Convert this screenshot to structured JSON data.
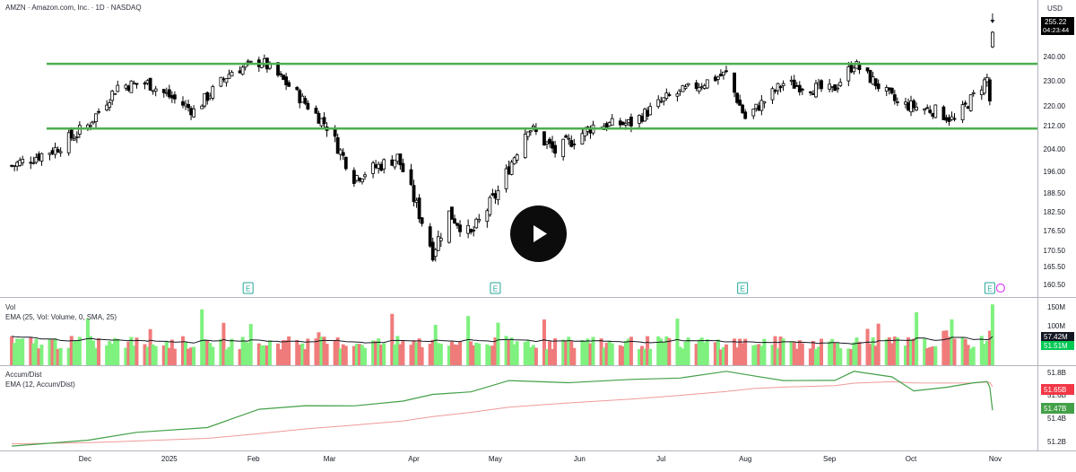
{
  "header": {
    "symbol_title": "AMZN · Amazon.com, Inc. · 1D · NASDAQ",
    "currency": "USD"
  },
  "price_panel": {
    "last_price": "255.22",
    "countdown": "04:23:44",
    "tick_labels": [
      "240.00",
      "230.00",
      "220.00",
      "212.00",
      "204.00",
      "196.00",
      "188.50",
      "182.50",
      "176.50",
      "170.50",
      "165.50",
      "160.50"
    ],
    "earnings_marker": "E"
  },
  "volume_panel": {
    "title": "Vol",
    "ema_label": "EMA (25, Vol: Volume, 0, SMA, 25)",
    "tick_labels": [
      "150M",
      "100M"
    ],
    "ema_value": "57.42M",
    "volume_value": "51.51M"
  },
  "ad_panel": {
    "title": "Accum/Dist",
    "ema_label": "EMA (12, Accum/Dist)",
    "tick_labels": [
      "51.8B",
      "51.6B",
      "51.4B",
      "51.2B"
    ],
    "ema_value": "51.65B",
    "ad_value": "51.47B"
  },
  "x_axis": {
    "labels": [
      "Dec",
      "2025",
      "Feb",
      "Mar",
      "Apr",
      "May",
      "Jun",
      "Jul",
      "Aug",
      "Sep",
      "Oct",
      "Nov"
    ]
  },
  "colors": {
    "up_volume": "#7ef17e",
    "down_volume": "#f07b7b",
    "level_line": "#4caf50",
    "ad_line": "#43a047",
    "ad_ema": "#ef9a9a",
    "vol_ema": "#131722",
    "candle": "#000000",
    "ema_tag": "#131722",
    "vol_tag": "#00c853",
    "ad_ema_tag": "#f23645",
    "ad_tag": "#43a047"
  },
  "chart_data": {
    "type": "candlestick",
    "symbol": "AMZN",
    "timeframe": "1D",
    "price_range": [
      158.5,
      258
    ],
    "horizontal_levels": [
      237,
      211
    ],
    "x_range": [
      "2024-11-01",
      "2025-11-03"
    ],
    "candles_monthly_path": [
      {
        "date": "2024-11-04",
        "close": 198
      },
      {
        "date": "2024-11-20",
        "close": 204
      },
      {
        "date": "2024-12-02",
        "close": 212
      },
      {
        "date": "2024-12-13",
        "close": 228
      },
      {
        "date": "2024-12-24",
        "close": 229
      },
      {
        "date": "2025-01-10",
        "close": 218
      },
      {
        "date": "2025-01-24",
        "close": 234
      },
      {
        "date": "2025-02-04",
        "close": 238
      },
      {
        "date": "2025-02-14",
        "close": 228
      },
      {
        "date": "2025-02-28",
        "close": 212
      },
      {
        "date": "2025-03-10",
        "close": 194
      },
      {
        "date": "2025-03-26",
        "close": 201
      },
      {
        "date": "2025-04-08",
        "close": 170
      },
      {
        "date": "2025-04-14",
        "close": 182
      },
      {
        "date": "2025-04-22",
        "close": 175
      },
      {
        "date": "2025-05-02",
        "close": 189
      },
      {
        "date": "2025-05-13",
        "close": 212
      },
      {
        "date": "2025-05-23",
        "close": 203
      },
      {
        "date": "2025-06-06",
        "close": 212
      },
      {
        "date": "2025-06-20",
        "close": 213
      },
      {
        "date": "2025-07-03",
        "close": 223
      },
      {
        "date": "2025-07-25",
        "close": 233
      },
      {
        "date": "2025-08-01",
        "close": 215
      },
      {
        "date": "2025-08-15",
        "close": 229
      },
      {
        "date": "2025-09-02",
        "close": 226
      },
      {
        "date": "2025-09-10",
        "close": 237
      },
      {
        "date": "2025-09-26",
        "close": 221
      },
      {
        "date": "2025-10-10",
        "close": 218
      },
      {
        "date": "2025-10-17",
        "close": 214
      },
      {
        "date": "2025-10-29",
        "close": 231
      },
      {
        "date": "2025-10-30",
        "close": 222
      },
      {
        "date": "2025-10-31",
        "close": 249
      }
    ],
    "volume_range_M": [
      0,
      160
    ],
    "volume_ema_last_M": 57.42,
    "volume_last_M": 51.51,
    "accum_dist_range_B": [
      51.1,
      51.9
    ],
    "accum_dist_last_B": 51.47,
    "accum_dist_ema_last_B": 51.65
  }
}
